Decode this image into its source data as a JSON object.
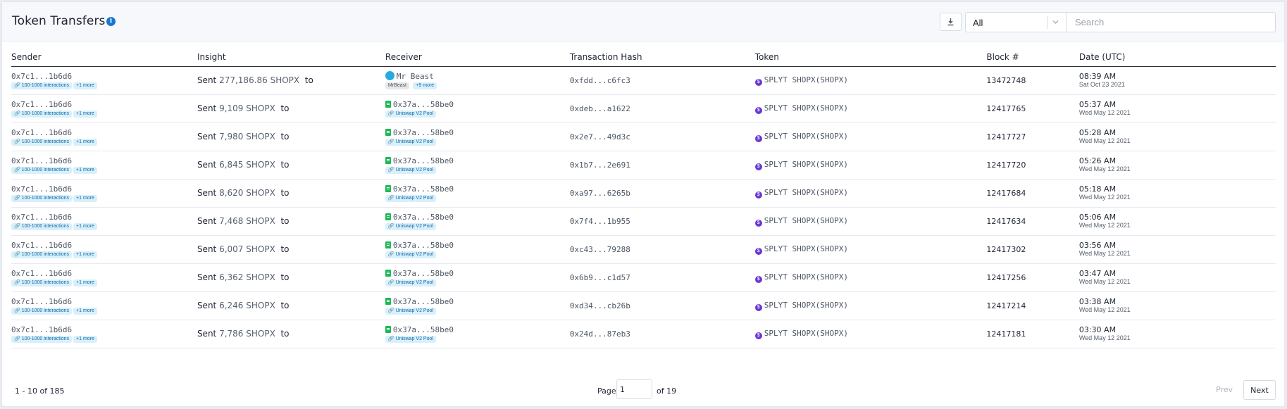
{
  "header": {
    "title": "Token Transfers",
    "filter_value": "All",
    "search_placeholder": "Search"
  },
  "columns": [
    "Sender",
    "Insight",
    "Receiver",
    "Transaction Hash",
    "Token",
    "Block #",
    "Date (UTC)"
  ],
  "rows": [
    {
      "sender": "0x7c1...1b6d6",
      "sender_badge": "100-1000 interactions",
      "sender_more": "+1 more",
      "verb": "Sent",
      "amount": "277,186.86 SHOPX",
      "to": "to",
      "receiver": "Mr Beast",
      "receiver_badge": "MrBeast",
      "receiver_more": "+9 more",
      "hash": "0xfdd...c6fc3",
      "token": "SPLYT SHOPX(SHOPX)",
      "block": "13472748",
      "time": "08:39 AM",
      "date": "Sat Oct 23 2021"
    },
    {
      "sender": "0x7c1...1b6d6",
      "sender_badge": "100-1000 interactions",
      "sender_more": "+1 more",
      "verb": "Sent",
      "amount": "9,109 SHOPX",
      "to": "to",
      "receiver": "0x37a...58be0",
      "receiver_badge": "Uniswap V2 Pool",
      "hash": "0xdeb...a1622",
      "token": "SPLYT SHOPX(SHOPX)",
      "block": "12417765",
      "time": "05:37 AM",
      "date": "Wed May 12 2021"
    },
    {
      "sender": "0x7c1...1b6d6",
      "sender_badge": "100-1000 interactions",
      "sender_more": "+1 more",
      "verb": "Sent",
      "amount": "7,980 SHOPX",
      "to": "to",
      "receiver": "0x37a...58be0",
      "receiver_badge": "Uniswap V2 Pool",
      "hash": "0x2e7...49d3c",
      "token": "SPLYT SHOPX(SHOPX)",
      "block": "12417727",
      "time": "05:28 AM",
      "date": "Wed May 12 2021"
    },
    {
      "sender": "0x7c1...1b6d6",
      "sender_badge": "100-1000 interactions",
      "sender_more": "+1 more",
      "verb": "Sent",
      "amount": "6,845 SHOPX",
      "to": "to",
      "receiver": "0x37a...58be0",
      "receiver_badge": "Uniswap V2 Pool",
      "hash": "0x1b7...2e691",
      "token": "SPLYT SHOPX(SHOPX)",
      "block": "12417720",
      "time": "05:26 AM",
      "date": "Wed May 12 2021"
    },
    {
      "sender": "0x7c1...1b6d6",
      "sender_badge": "100-1000 interactions",
      "sender_more": "+1 more",
      "verb": "Sent",
      "amount": "8,620 SHOPX",
      "to": "to",
      "receiver": "0x37a...58be0",
      "receiver_badge": "Uniswap V2 Pool",
      "hash": "0xa97...6265b",
      "token": "SPLYT SHOPX(SHOPX)",
      "block": "12417684",
      "time": "05:18 AM",
      "date": "Wed May 12 2021"
    },
    {
      "sender": "0x7c1...1b6d6",
      "sender_badge": "100-1000 interactions",
      "sender_more": "+1 more",
      "verb": "Sent",
      "amount": "7,468 SHOPX",
      "to": "to",
      "receiver": "0x37a...58be0",
      "receiver_badge": "Uniswap V2 Pool",
      "hash": "0x7f4...1b955",
      "token": "SPLYT SHOPX(SHOPX)",
      "block": "12417634",
      "time": "05:06 AM",
      "date": "Wed May 12 2021"
    },
    {
      "sender": "0x7c1...1b6d6",
      "sender_badge": "100-1000 interactions",
      "sender_more": "+1 more",
      "verb": "Sent",
      "amount": "6,007 SHOPX",
      "to": "to",
      "receiver": "0x37a...58be0",
      "receiver_badge": "Uniswap V2 Pool",
      "hash": "0xc43...79288",
      "token": "SPLYT SHOPX(SHOPX)",
      "block": "12417302",
      "time": "03:56 AM",
      "date": "Wed May 12 2021"
    },
    {
      "sender": "0x7c1...1b6d6",
      "sender_badge": "100-1000 interactions",
      "sender_more": "+1 more",
      "verb": "Sent",
      "amount": "6,362 SHOPX",
      "to": "to",
      "receiver": "0x37a...58be0",
      "receiver_badge": "Uniswap V2 Pool",
      "hash": "0x6b9...c1d57",
      "token": "SPLYT SHOPX(SHOPX)",
      "block": "12417256",
      "time": "03:47 AM",
      "date": "Wed May 12 2021"
    },
    {
      "sender": "0x7c1...1b6d6",
      "sender_badge": "100-1000 interactions",
      "sender_more": "+1 more",
      "verb": "Sent",
      "amount": "6,246 SHOPX",
      "to": "to",
      "receiver": "0x37a...58be0",
      "receiver_badge": "Uniswap V2 Pool",
      "hash": "0xd34...cb26b",
      "token": "SPLYT SHOPX(SHOPX)",
      "block": "12417214",
      "time": "03:38 AM",
      "date": "Wed May 12 2021"
    },
    {
      "sender": "0x7c1...1b6d6",
      "sender_badge": "100-1000 interactions",
      "sender_more": "+1 more",
      "verb": "Sent",
      "amount": "7,786 SHOPX",
      "to": "to",
      "receiver": "0x37a...58be0",
      "receiver_badge": "Uniswap V2 Pool",
      "hash": "0x24d...87eb3",
      "token": "SPLYT SHOPX(SHOPX)",
      "block": "12417181",
      "time": "03:30 AM",
      "date": "Wed May 12 2021"
    }
  ],
  "footer": {
    "range": "1 - 10 of 185",
    "page_label": "Page",
    "page_value": "1",
    "of_label": "of 19",
    "prev": "Prev",
    "next": "Next"
  },
  "colors": {
    "accent": "#1976d2",
    "contract": "#1fb957",
    "token": "#6a36d4",
    "badge_bg": "#d9f0fb"
  }
}
